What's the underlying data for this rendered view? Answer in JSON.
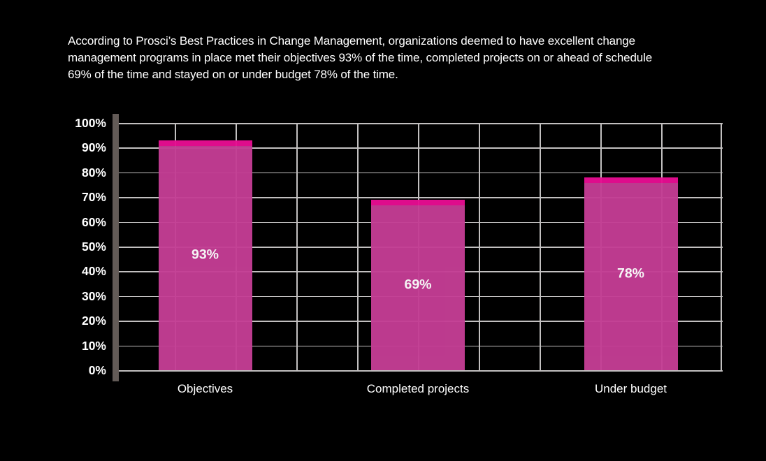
{
  "caption": {
    "lines": [
      "According to Prosci’s Best Practices in Change Management, organizations deemed to have excellent change",
      "management programs in place met their objectives 93% of the time, completed projects on or ahead of schedule",
      "69% of the time and stayed on or under budget 78% of the time."
    ]
  },
  "chart_data": {
    "type": "bar",
    "title": "",
    "xlabel": "",
    "ylabel": "",
    "categories": [
      "Objectives",
      "Completed projects",
      "Under budget"
    ],
    "values": [
      93,
      69,
      78
    ],
    "value_labels": [
      "93%",
      "69%",
      "78%"
    ],
    "y_ticks": [
      "100%",
      "90%",
      "80%",
      "70%",
      "60%",
      "50%",
      "40%",
      "30%",
      "20%",
      "10%",
      "0%"
    ],
    "ylim": [
      0,
      100
    ],
    "y_step": 10,
    "grid": "horizontal and vertical gridlines on",
    "legend": "none",
    "colors": {
      "background": "#000000",
      "bar_body": "#c43d94",
      "bar_cap": "#e80d92",
      "gridline": "#c2c0c0",
      "axis": "#635b57",
      "text": "#ffffff"
    }
  }
}
